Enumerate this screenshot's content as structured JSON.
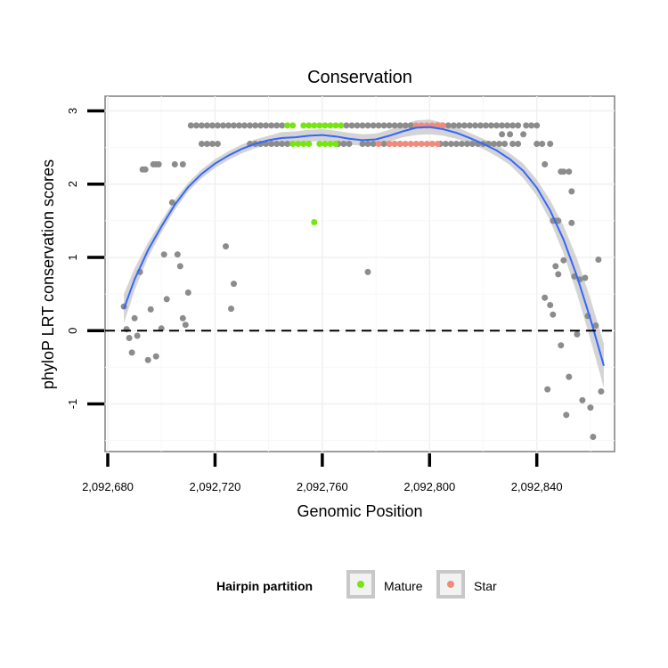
{
  "chart_data": {
    "type": "scatter",
    "title": "Conservation",
    "xlabel": "Genomic Position",
    "ylabel": "phyloP LRT conservation scores",
    "xlim": [
      2092679,
      2092869
    ],
    "ylim": [
      -1.65,
      3.2
    ],
    "x_ticks": [
      2092680,
      2092720,
      2092760,
      2092800,
      2092840
    ],
    "x_tick_labels": [
      "2,092,680",
      "2,092,720",
      "2,092,760",
      "2,092,800",
      "2,092,840"
    ],
    "y_ticks": [
      -1,
      0,
      1,
      2,
      3
    ],
    "y_tick_labels": [
      "-1",
      "0",
      "1",
      "2",
      "3"
    ],
    "reference_line": 0,
    "grid": true,
    "legend": {
      "title": "Hairpin partition",
      "position": "bottom",
      "entries": [
        {
          "label": "Mature",
          "color": "#76e510"
        },
        {
          "label": "Star",
          "color": "#f08a7c"
        }
      ]
    },
    "colors": {
      "other": "#8c8c8c",
      "mature": "#76e510",
      "star": "#f08a7c",
      "smooth_line": "#3366ff",
      "smooth_band": "#cccccc",
      "reference": "#000000"
    },
    "series": [
      {
        "name": "Other",
        "points": [
          [
            2092686,
            0.33
          ],
          [
            2092687,
            0.02
          ],
          [
            2092688,
            -0.1
          ],
          [
            2092689,
            -0.3
          ],
          [
            2092690,
            0.17
          ],
          [
            2092691,
            -0.07
          ],
          [
            2092692,
            0.8
          ],
          [
            2092693,
            2.2
          ],
          [
            2092694,
            2.2
          ],
          [
            2092695,
            -0.4
          ],
          [
            2092696,
            0.29
          ],
          [
            2092697,
            2.27
          ],
          [
            2092698,
            2.27
          ],
          [
            2092698,
            -0.35
          ],
          [
            2092699,
            2.27
          ],
          [
            2092700,
            0.03
          ],
          [
            2092701,
            1.04
          ],
          [
            2092702,
            0.43
          ],
          [
            2092704,
            1.75
          ],
          [
            2092705,
            2.27
          ],
          [
            2092706,
            1.04
          ],
          [
            2092707,
            0.88
          ],
          [
            2092708,
            2.27
          ],
          [
            2092708,
            0.17
          ],
          [
            2092709,
            0.08
          ],
          [
            2092710,
            0.52
          ],
          [
            2092724,
            1.15
          ],
          [
            2092726,
            0.3
          ],
          [
            2092727,
            0.64
          ],
          [
            2092777,
            0.8
          ],
          [
            2092711,
            2.8
          ],
          [
            2092713,
            2.8
          ],
          [
            2092715,
            2.8
          ],
          [
            2092717,
            2.8
          ],
          [
            2092719,
            2.8
          ],
          [
            2092721,
            2.8
          ],
          [
            2092723,
            2.8
          ],
          [
            2092725,
            2.8
          ],
          [
            2092727,
            2.8
          ],
          [
            2092729,
            2.8
          ],
          [
            2092731,
            2.8
          ],
          [
            2092733,
            2.8
          ],
          [
            2092735,
            2.8
          ],
          [
            2092737,
            2.8
          ],
          [
            2092739,
            2.8
          ],
          [
            2092741,
            2.8
          ],
          [
            2092743,
            2.8
          ],
          [
            2092745,
            2.8
          ],
          [
            2092769,
            2.8
          ],
          [
            2092771,
            2.8
          ],
          [
            2092773,
            2.8
          ],
          [
            2092775,
            2.8
          ],
          [
            2092777,
            2.8
          ],
          [
            2092779,
            2.8
          ],
          [
            2092781,
            2.8
          ],
          [
            2092783,
            2.8
          ],
          [
            2092785,
            2.8
          ],
          [
            2092787,
            2.8
          ],
          [
            2092789,
            2.8
          ],
          [
            2092791,
            2.8
          ],
          [
            2092793,
            2.8
          ],
          [
            2092803,
            2.8
          ],
          [
            2092805,
            2.8
          ],
          [
            2092807,
            2.8
          ],
          [
            2092809,
            2.8
          ],
          [
            2092811,
            2.8
          ],
          [
            2092813,
            2.8
          ],
          [
            2092815,
            2.8
          ],
          [
            2092817,
            2.8
          ],
          [
            2092819,
            2.8
          ],
          [
            2092821,
            2.8
          ],
          [
            2092823,
            2.8
          ],
          [
            2092825,
            2.8
          ],
          [
            2092827,
            2.8
          ],
          [
            2092829,
            2.8
          ],
          [
            2092831,
            2.8
          ],
          [
            2092833,
            2.8
          ],
          [
            2092836,
            2.8
          ],
          [
            2092838,
            2.8
          ],
          [
            2092840,
            2.8
          ],
          [
            2092715,
            2.55
          ],
          [
            2092717,
            2.55
          ],
          [
            2092719,
            2.55
          ],
          [
            2092721,
            2.55
          ],
          [
            2092733,
            2.55
          ],
          [
            2092735,
            2.55
          ],
          [
            2092737,
            2.55
          ],
          [
            2092739,
            2.55
          ],
          [
            2092741,
            2.55
          ],
          [
            2092743,
            2.55
          ],
          [
            2092745,
            2.55
          ],
          [
            2092747,
            2.55
          ],
          [
            2092766,
            2.55
          ],
          [
            2092768,
            2.55
          ],
          [
            2092770,
            2.55
          ],
          [
            2092775,
            2.55
          ],
          [
            2092777,
            2.55
          ],
          [
            2092779,
            2.55
          ],
          [
            2092783,
            2.55
          ],
          [
            2092785,
            2.55
          ],
          [
            2092787,
            2.55
          ],
          [
            2092789,
            2.55
          ],
          [
            2092804,
            2.55
          ],
          [
            2092806,
            2.55
          ],
          [
            2092808,
            2.55
          ],
          [
            2092810,
            2.55
          ],
          [
            2092812,
            2.55
          ],
          [
            2092814,
            2.55
          ],
          [
            2092816,
            2.55
          ],
          [
            2092818,
            2.55
          ],
          [
            2092820,
            2.55
          ],
          [
            2092822,
            2.55
          ],
          [
            2092824,
            2.55
          ],
          [
            2092826,
            2.55
          ],
          [
            2092828,
            2.55
          ],
          [
            2092831,
            2.55
          ],
          [
            2092833,
            2.55
          ],
          [
            2092827,
            2.68
          ],
          [
            2092830,
            2.68
          ],
          [
            2092835,
            2.68
          ],
          [
            2092840,
            2.55
          ],
          [
            2092842,
            2.55
          ],
          [
            2092843,
            2.27
          ],
          [
            2092845,
            2.55
          ],
          [
            2092846,
            1.5
          ],
          [
            2092847,
            1.5
          ],
          [
            2092848,
            1.5
          ],
          [
            2092849,
            2.17
          ],
          [
            2092850,
            2.17
          ],
          [
            2092852,
            2.17
          ],
          [
            2092853,
            1.47
          ],
          [
            2092843,
            0.45
          ],
          [
            2092844,
            -0.8
          ],
          [
            2092845,
            0.35
          ],
          [
            2092846,
            0.22
          ],
          [
            2092847,
            0.88
          ],
          [
            2092848,
            0.77
          ],
          [
            2092849,
            -0.2
          ],
          [
            2092850,
            0.96
          ],
          [
            2092851,
            -1.15
          ],
          [
            2092852,
            -0.63
          ],
          [
            2092853,
            1.9
          ],
          [
            2092854,
            0.74
          ],
          [
            2092855,
            -0.05
          ],
          [
            2092856,
            0.7
          ],
          [
            2092857,
            -0.95
          ],
          [
            2092858,
            0.72
          ],
          [
            2092859,
            0.2
          ],
          [
            2092860,
            -1.05
          ],
          [
            2092861,
            -1.45
          ],
          [
            2092862,
            0.07
          ],
          [
            2092863,
            0.97
          ],
          [
            2092864,
            -0.83
          ]
        ]
      },
      {
        "name": "Mature",
        "points": [
          [
            2092747,
            2.8
          ],
          [
            2092749,
            2.8
          ],
          [
            2092753,
            2.8
          ],
          [
            2092755,
            2.8
          ],
          [
            2092757,
            2.8
          ],
          [
            2092759,
            2.8
          ],
          [
            2092761,
            2.8
          ],
          [
            2092763,
            2.8
          ],
          [
            2092765,
            2.8
          ],
          [
            2092767,
            2.8
          ],
          [
            2092749,
            2.55
          ],
          [
            2092751,
            2.55
          ],
          [
            2092753,
            2.55
          ],
          [
            2092755,
            2.55
          ],
          [
            2092759,
            2.55
          ],
          [
            2092761,
            2.55
          ],
          [
            2092763,
            2.55
          ],
          [
            2092765,
            2.55
          ],
          [
            2092757,
            1.48
          ]
        ]
      },
      {
        "name": "Star",
        "points": [
          [
            2092781,
            2.55
          ],
          [
            2092785,
            2.55
          ],
          [
            2092787,
            2.55
          ],
          [
            2092789,
            2.55
          ],
          [
            2092791,
            2.55
          ],
          [
            2092793,
            2.55
          ],
          [
            2092795,
            2.55
          ],
          [
            2092797,
            2.55
          ],
          [
            2092799,
            2.55
          ],
          [
            2092801,
            2.55
          ],
          [
            2092803,
            2.55
          ],
          [
            2092795,
            2.8
          ],
          [
            2092797,
            2.8
          ],
          [
            2092799,
            2.8
          ],
          [
            2092801,
            2.8
          ],
          [
            2092803,
            2.8
          ],
          [
            2092805,
            2.8
          ]
        ]
      }
    ],
    "smooth": {
      "x": [
        2092686,
        2092690,
        2092695,
        2092700,
        2092705,
        2092710,
        2092715,
        2092720,
        2092725,
        2092730,
        2092735,
        2092740,
        2092745,
        2092750,
        2092755,
        2092760,
        2092765,
        2092770,
        2092775,
        2092780,
        2092785,
        2092790,
        2092795,
        2092800,
        2092805,
        2092810,
        2092815,
        2092820,
        2092825,
        2092830,
        2092835,
        2092840,
        2092845,
        2092850,
        2092855,
        2092860,
        2092865
      ],
      "y": [
        0.3,
        0.7,
        1.1,
        1.42,
        1.72,
        1.96,
        2.14,
        2.28,
        2.39,
        2.48,
        2.55,
        2.6,
        2.63,
        2.64,
        2.66,
        2.67,
        2.65,
        2.62,
        2.6,
        2.61,
        2.66,
        2.72,
        2.77,
        2.78,
        2.75,
        2.7,
        2.63,
        2.55,
        2.46,
        2.34,
        2.18,
        1.95,
        1.64,
        1.24,
        0.74,
        0.16,
        -0.48
      ],
      "lower": [
        0.1,
        0.55,
        1.0,
        1.34,
        1.65,
        1.9,
        2.08,
        2.22,
        2.33,
        2.42,
        2.49,
        2.54,
        2.55,
        2.56,
        2.58,
        2.59,
        2.57,
        2.54,
        2.52,
        2.53,
        2.58,
        2.64,
        2.67,
        2.68,
        2.66,
        2.62,
        2.56,
        2.48,
        2.38,
        2.26,
        2.08,
        1.84,
        1.5,
        1.05,
        0.5,
        -0.12,
        -0.78
      ],
      "upper": [
        0.5,
        0.85,
        1.2,
        1.5,
        1.79,
        2.02,
        2.2,
        2.34,
        2.45,
        2.54,
        2.61,
        2.66,
        2.71,
        2.72,
        2.74,
        2.75,
        2.73,
        2.7,
        2.68,
        2.69,
        2.74,
        2.81,
        2.87,
        2.88,
        2.84,
        2.78,
        2.7,
        2.62,
        2.54,
        2.42,
        2.28,
        2.06,
        1.78,
        1.43,
        0.98,
        0.44,
        -0.18
      ]
    }
  }
}
